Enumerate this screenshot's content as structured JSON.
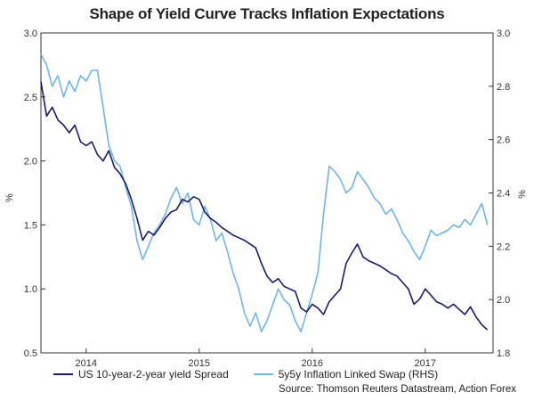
{
  "chart_data": {
    "type": "line",
    "title": "Shape of Yield Curve Tracks Inflation Expectations",
    "ylabel_left": "%",
    "ylabel_right": "%",
    "ylim_left": [
      0.5,
      3.0
    ],
    "ylim_right": [
      1.8,
      3.0
    ],
    "xlim": [
      2013.6,
      2017.6
    ],
    "yticks_left": [
      "3.0",
      "2.5",
      "2.0",
      "1.5",
      "1.0",
      "0.5"
    ],
    "yticks_right": [
      "3.0",
      "2.8",
      "2.6",
      "2.4",
      "2.2",
      "2.0",
      "1.8"
    ],
    "xticks": [
      {
        "x": 2014.0,
        "label": "2014"
      },
      {
        "x": 2015.0,
        "label": "2015"
      },
      {
        "x": 2016.0,
        "label": "2016"
      },
      {
        "x": 2017.0,
        "label": "2017"
      }
    ],
    "series": [
      {
        "name": "US 10-year-2-year yield Spread",
        "axis": "left",
        "color": "#1a1a6e",
        "x": [
          2013.6,
          2013.65,
          2013.7,
          2013.75,
          2013.8,
          2013.85,
          2013.9,
          2013.95,
          2014.0,
          2014.05,
          2014.1,
          2014.15,
          2014.2,
          2014.25,
          2014.3,
          2014.35,
          2014.4,
          2014.45,
          2014.5,
          2014.55,
          2014.6,
          2014.65,
          2014.7,
          2014.75,
          2014.8,
          2014.85,
          2014.9,
          2014.95,
          2015.0,
          2015.05,
          2015.1,
          2015.15,
          2015.2,
          2015.25,
          2015.3,
          2015.35,
          2015.4,
          2015.45,
          2015.5,
          2015.55,
          2015.6,
          2015.65,
          2015.7,
          2015.75,
          2015.8,
          2015.85,
          2015.9,
          2015.95,
          2016.0,
          2016.05,
          2016.1,
          2016.15,
          2016.2,
          2016.25,
          2016.3,
          2016.35,
          2016.4,
          2016.45,
          2016.5,
          2016.55,
          2016.6,
          2016.65,
          2016.7,
          2016.75,
          2016.8,
          2016.85,
          2016.9,
          2016.95,
          2017.0,
          2017.05,
          2017.1,
          2017.15,
          2017.2,
          2017.25,
          2017.3,
          2017.35,
          2017.4,
          2017.45,
          2017.5,
          2017.55
        ],
        "values": [
          2.62,
          2.35,
          2.42,
          2.32,
          2.28,
          2.22,
          2.28,
          2.15,
          2.12,
          2.15,
          2.05,
          2.0,
          2.08,
          1.95,
          1.9,
          1.82,
          1.7,
          1.55,
          1.38,
          1.45,
          1.42,
          1.48,
          1.55,
          1.6,
          1.62,
          1.7,
          1.68,
          1.72,
          1.7,
          1.6,
          1.55,
          1.52,
          1.48,
          1.45,
          1.42,
          1.4,
          1.38,
          1.35,
          1.32,
          1.2,
          1.1,
          1.05,
          1.08,
          1.02,
          1.0,
          0.98,
          0.85,
          0.82,
          0.88,
          0.85,
          0.8,
          0.9,
          0.95,
          1.0,
          1.2,
          1.28,
          1.35,
          1.25,
          1.22,
          1.2,
          1.18,
          1.15,
          1.12,
          1.1,
          1.05,
          1.0,
          0.88,
          0.92,
          1.0,
          0.95,
          0.9,
          0.88,
          0.85,
          0.88,
          0.84,
          0.8,
          0.86,
          0.78,
          0.72,
          0.68
        ]
      },
      {
        "name": "5y5y Inflation Linked Swap (RHS)",
        "axis": "right",
        "color": "#6fb4f0",
        "x": [
          2013.6,
          2013.65,
          2013.7,
          2013.75,
          2013.8,
          2013.85,
          2013.9,
          2013.95,
          2014.0,
          2014.05,
          2014.1,
          2014.15,
          2014.2,
          2014.25,
          2014.3,
          2014.35,
          2014.4,
          2014.45,
          2014.5,
          2014.55,
          2014.6,
          2014.65,
          2014.7,
          2014.75,
          2014.8,
          2014.85,
          2014.9,
          2014.95,
          2015.0,
          2015.05,
          2015.1,
          2015.15,
          2015.2,
          2015.25,
          2015.3,
          2015.35,
          2015.4,
          2015.45,
          2015.5,
          2015.55,
          2015.6,
          2015.65,
          2015.7,
          2015.75,
          2015.8,
          2015.85,
          2015.9,
          2015.95,
          2016.0,
          2016.05,
          2016.1,
          2016.15,
          2016.2,
          2016.25,
          2016.3,
          2016.35,
          2016.4,
          2016.45,
          2016.5,
          2016.55,
          2016.6,
          2016.65,
          2016.7,
          2016.75,
          2016.8,
          2016.85,
          2016.9,
          2016.95,
          2017.0,
          2017.05,
          2017.1,
          2017.15,
          2017.2,
          2017.25,
          2017.3,
          2017.35,
          2017.4,
          2017.45,
          2017.5,
          2017.55
        ],
        "values": [
          2.92,
          2.88,
          2.8,
          2.84,
          2.76,
          2.82,
          2.78,
          2.84,
          2.82,
          2.86,
          2.86,
          2.72,
          2.58,
          2.52,
          2.5,
          2.42,
          2.35,
          2.22,
          2.15,
          2.2,
          2.25,
          2.28,
          2.32,
          2.38,
          2.42,
          2.36,
          2.4,
          2.3,
          2.28,
          2.35,
          2.3,
          2.22,
          2.25,
          2.18,
          2.1,
          2.04,
          1.95,
          1.9,
          1.95,
          1.88,
          1.92,
          1.98,
          2.04,
          2.0,
          1.98,
          1.92,
          1.88,
          1.95,
          2.02,
          2.1,
          2.32,
          2.5,
          2.48,
          2.45,
          2.4,
          2.42,
          2.48,
          2.45,
          2.42,
          2.38,
          2.36,
          2.32,
          2.34,
          2.3,
          2.25,
          2.22,
          2.18,
          2.15,
          2.2,
          2.26,
          2.24,
          2.25,
          2.26,
          2.28,
          2.27,
          2.3,
          2.28,
          2.32,
          2.36,
          2.28
        ]
      }
    ]
  },
  "source": "Source: Thomson Reuters Datastream, Action Forex"
}
